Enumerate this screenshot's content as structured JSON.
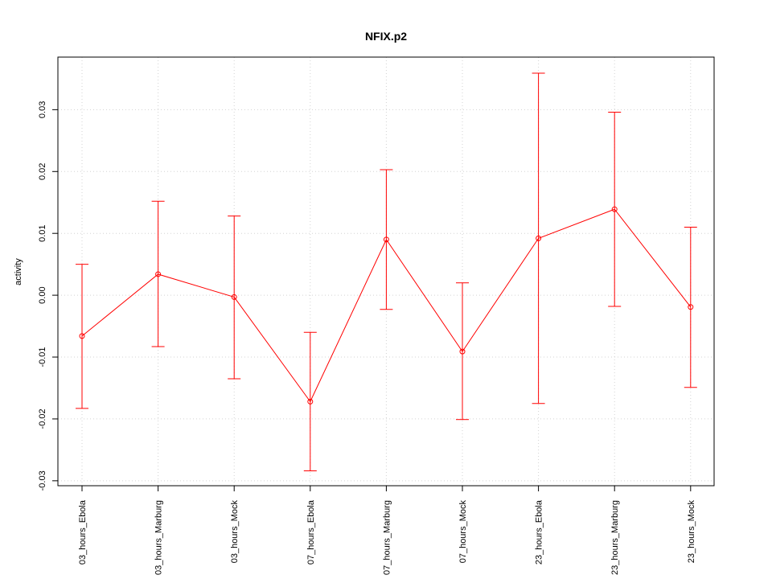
{
  "chart_data": {
    "type": "line",
    "title": "NFIX.p2",
    "xlabel": "",
    "ylabel": "activity",
    "categories": [
      "03_hours_Ebola",
      "03_hours_Marburg",
      "03_hours_Mock",
      "07_hours_Ebola",
      "07_hours_Marburg",
      "07_hours_Mock",
      "23_hours_Ebola",
      "23_hours_Marburg",
      "23_hours_Mock"
    ],
    "series": [
      {
        "values": [
          -0.0066,
          0.0034,
          -0.0003,
          -0.0172,
          0.009,
          -0.0091,
          0.0092,
          0.0139,
          -0.0019
        ],
        "lower": [
          -0.0183,
          -0.0083,
          -0.0135,
          -0.0284,
          -0.0023,
          -0.0201,
          -0.0175,
          -0.0018,
          -0.0149
        ],
        "upper": [
          0.005,
          0.0152,
          0.0128,
          -0.006,
          0.0203,
          0.002,
          0.0359,
          0.0296,
          0.011
        ],
        "color": "#ff0000"
      }
    ],
    "yticks": [
      -0.03,
      -0.02,
      -0.01,
      0.0,
      0.01,
      0.02,
      0.03
    ],
    "ytick_labels": [
      "-0.03",
      "-0.02",
      "-0.01",
      "0.00",
      "0.01",
      "0.02",
      "0.03"
    ],
    "ylim": [
      -0.0308,
      0.0385
    ],
    "grid": true,
    "legend": "none"
  }
}
